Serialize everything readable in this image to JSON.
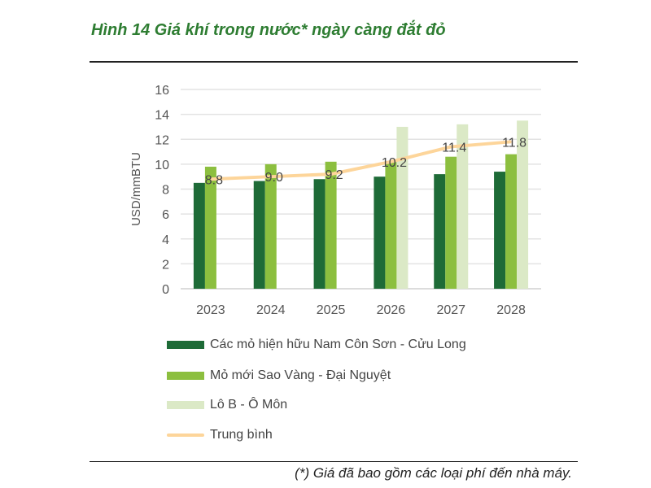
{
  "title": "Hình 14 Giá khí trong nước* ngày càng đắt đỏ",
  "footnote": "(*) Giá đã bao gồm các loại phí đến nhà máy.",
  "chart_data": {
    "type": "bar",
    "ylabel": "USD/mmBTU",
    "xlabel": "",
    "ylim": [
      0,
      16
    ],
    "yticks": [
      0,
      2,
      4,
      6,
      8,
      10,
      12,
      14,
      16
    ],
    "grid": true,
    "legend_position": "bottom",
    "categories": [
      "2023",
      "2024",
      "2025",
      "2026",
      "2027",
      "2028"
    ],
    "series": [
      {
        "name": "Các mỏ hiện hữu Nam Côn Sơn - Cửu Long",
        "type": "bar",
        "color": "#1e6b37",
        "values": [
          8.5,
          8.65,
          8.8,
          9.0,
          9.2,
          9.4
        ]
      },
      {
        "name": "Mỏ mới Sao Vàng - Đại Nguyệt",
        "type": "bar",
        "color": "#8cbf3f",
        "values": [
          9.8,
          10.0,
          10.2,
          10.2,
          10.6,
          10.8
        ]
      },
      {
        "name": "Lô B - Ô Môn",
        "type": "bar",
        "color": "#dbe9c6",
        "values": [
          null,
          null,
          null,
          13.0,
          13.2,
          13.5
        ]
      },
      {
        "name": "Trung bình",
        "type": "line",
        "color": "#fdd59a",
        "values": [
          8.8,
          9.0,
          9.2,
          10.2,
          11.4,
          11.8
        ],
        "labels": [
          "8.8",
          "9.0",
          "9.2",
          "10.2",
          "11.4",
          "11.8"
        ]
      }
    ]
  }
}
